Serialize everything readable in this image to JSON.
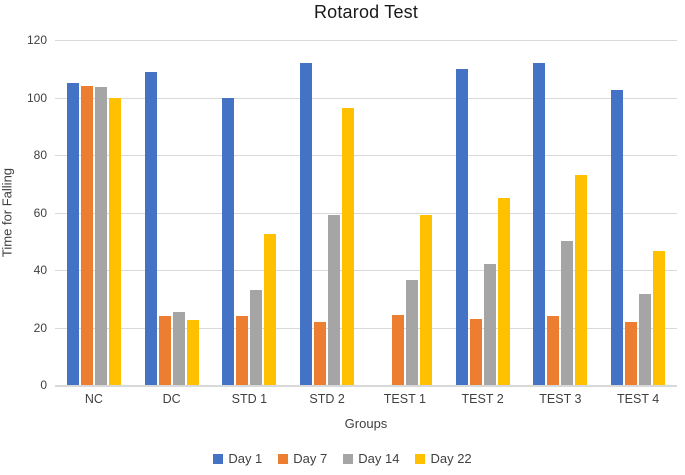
{
  "chart_data": {
    "type": "bar",
    "title": "Rotarod Test",
    "xlabel": "Groups",
    "ylabel": "Time for Falling",
    "ylim": [
      0,
      120
    ],
    "yticks": [
      0,
      20,
      40,
      60,
      80,
      100,
      120
    ],
    "grid": true,
    "legend_position": "bottom",
    "categories": [
      "NC",
      "DC",
      "STD 1",
      "STD 2",
      "TEST 1",
      "TEST 2",
      "TEST 3",
      "TEST 4"
    ],
    "series": [
      {
        "name": "Day 1",
        "color": "#4472C4",
        "values": [
          105,
          109,
          100,
          112,
          0,
          110,
          112,
          102.5
        ]
      },
      {
        "name": "Day 7",
        "color": "#ED7D31",
        "values": [
          104,
          24,
          24,
          22,
          24.5,
          23,
          24,
          22
        ]
      },
      {
        "name": "Day 14",
        "color": "#A5A5A5",
        "values": [
          103.5,
          25.5,
          33,
          59,
          36.5,
          42,
          50,
          31.5
        ]
      },
      {
        "name": "Day 22",
        "color": "#FFC000",
        "values": [
          100,
          22.5,
          52.5,
          96.5,
          59,
          65,
          73,
          46.5
        ]
      }
    ],
    "colors": {
      "gridline": "#D9D9D9",
      "axis_line": "#D9D9D9",
      "text": "#404040",
      "title_text": "#1A1A1A"
    }
  }
}
